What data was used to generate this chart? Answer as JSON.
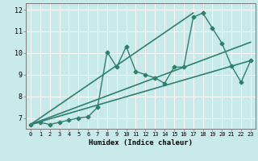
{
  "xlabel": "Humidex (Indice chaleur)",
  "xlim": [
    -0.5,
    23.5
  ],
  "ylim": [
    6.5,
    12.3
  ],
  "yticks": [
    7,
    8,
    9,
    10,
    11,
    12
  ],
  "xticks": [
    0,
    1,
    2,
    3,
    4,
    5,
    6,
    7,
    8,
    9,
    10,
    11,
    12,
    13,
    14,
    15,
    16,
    17,
    18,
    19,
    20,
    21,
    22,
    23
  ],
  "bg_color": "#c8eaea",
  "line_color": "#2e7f6e",
  "grid_color": "#ffffff",
  "series": [
    {
      "x": [
        0,
        1,
        2,
        3,
        4,
        5,
        6,
        7,
        8,
        9,
        10,
        11,
        12,
        13,
        14,
        15,
        16,
        17,
        18,
        19,
        20,
        21,
        22,
        23
      ],
      "y": [
        6.7,
        6.8,
        6.7,
        6.8,
        6.9,
        7.0,
        7.05,
        7.5,
        10.05,
        9.35,
        10.3,
        9.15,
        9.0,
        8.85,
        8.6,
        9.35,
        9.35,
        11.65,
        11.85,
        11.15,
        10.45,
        9.4,
        8.65,
        9.65
      ],
      "marker": "D",
      "markersize": 2.5,
      "linewidth": 1.0,
      "zorder": 4
    },
    {
      "x": [
        0,
        23
      ],
      "y": [
        6.7,
        9.65
      ],
      "marker": null,
      "markersize": 0,
      "linewidth": 1.2,
      "zorder": 3
    },
    {
      "x": [
        0,
        23
      ],
      "y": [
        6.7,
        10.5
      ],
      "marker": null,
      "markersize": 0,
      "linewidth": 1.2,
      "zorder": 3
    },
    {
      "x": [
        0,
        17
      ],
      "y": [
        6.7,
        11.85
      ],
      "marker": null,
      "markersize": 0,
      "linewidth": 1.2,
      "zorder": 3
    }
  ]
}
